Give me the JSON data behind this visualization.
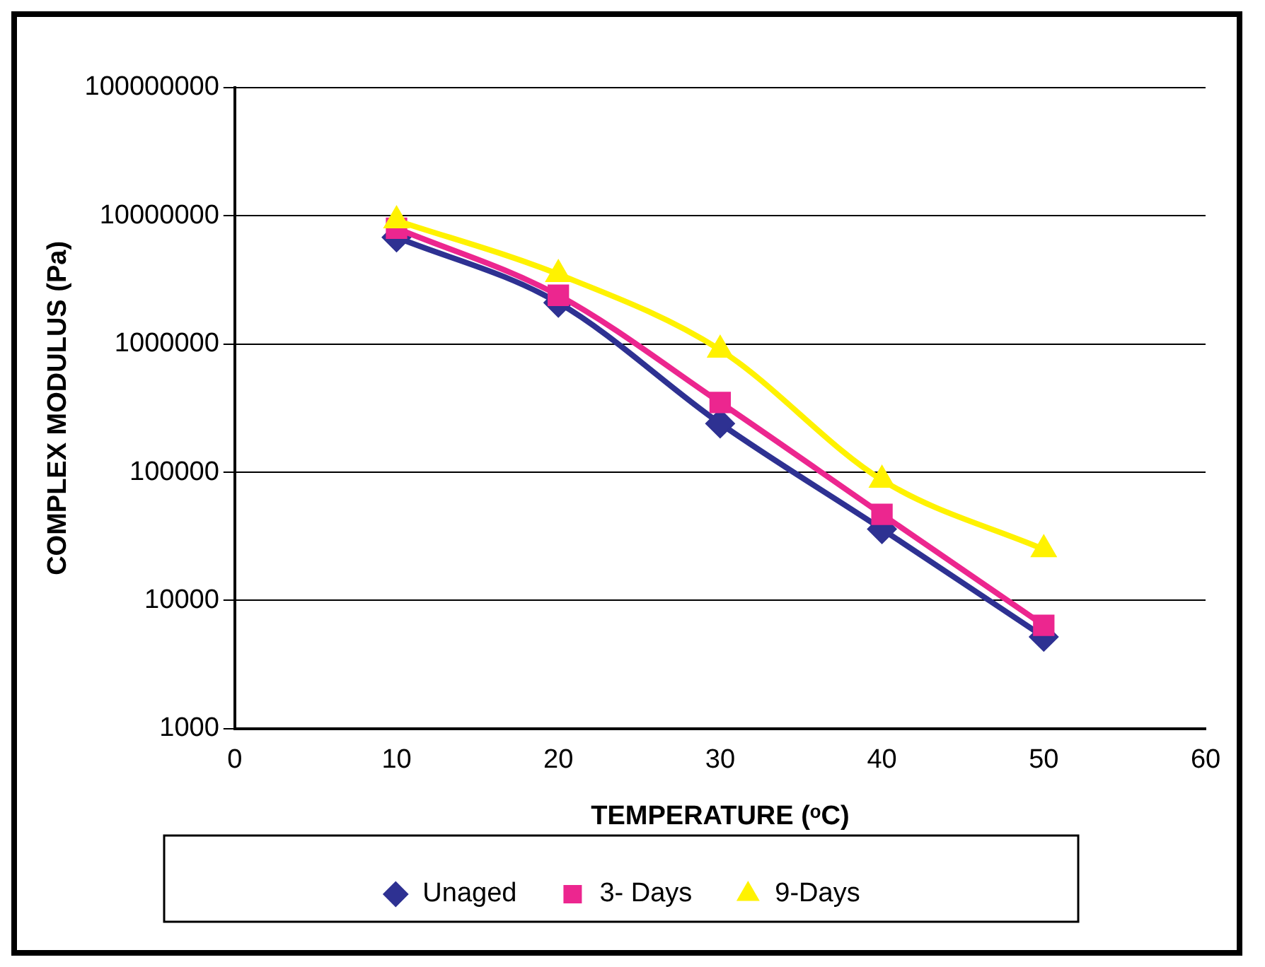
{
  "chart_data": {
    "type": "line",
    "xlabel": "TEMPERATURE (ᵒC)",
    "ylabel": "COMPLEX MODULUS (Pa)",
    "x": [
      10,
      20,
      30,
      40,
      50
    ],
    "series": [
      {
        "name": "Unaged",
        "color": "#2e3192",
        "marker": "diamond",
        "values": [
          6800000,
          2100000,
          240000,
          36000,
          5200
        ]
      },
      {
        "name": "3- Days",
        "color": "#ec268f",
        "marker": "square",
        "values": [
          8000000,
          2400000,
          350000,
          47000,
          6400
        ]
      },
      {
        "name": "9-Days",
        "color": "#fff200",
        "marker": "triangle",
        "values": [
          9200000,
          3500000,
          900000,
          87000,
          25000
        ]
      }
    ],
    "log": "y",
    "xlim": [
      0,
      60
    ],
    "xticks": [
      0,
      10,
      20,
      30,
      40,
      50,
      60
    ],
    "ylim": [
      1000,
      100000000
    ],
    "yticks": [
      1000,
      10000,
      100000,
      1000000,
      10000000,
      100000000
    ],
    "grid": "y",
    "legend": "bottom"
  }
}
